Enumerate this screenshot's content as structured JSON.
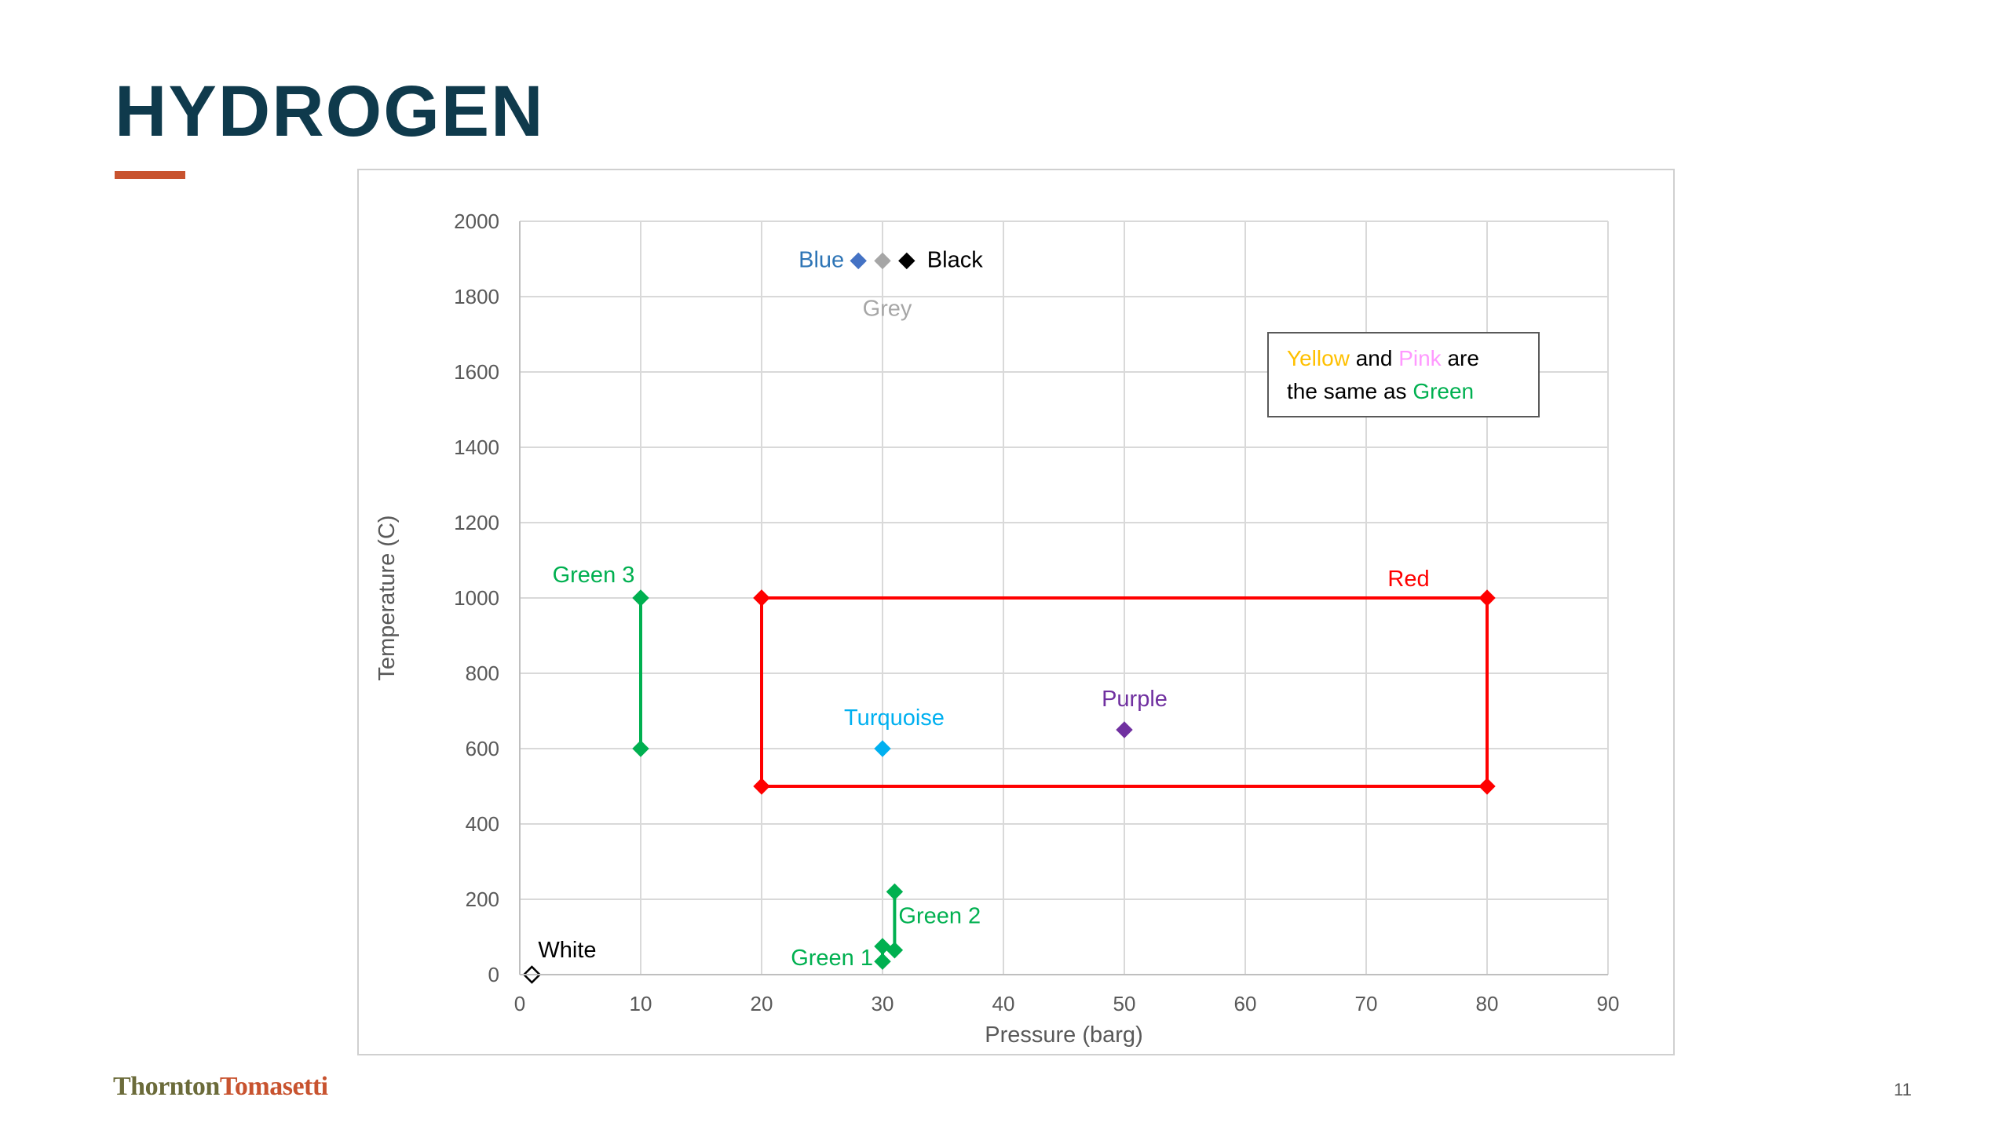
{
  "slide": {
    "title": "HYDROGEN",
    "page_number": "11",
    "logo": {
      "word1": "Thornton",
      "word2": "Tomasetti"
    },
    "accent_color": "#c8532f",
    "title_color": "#0f3a4c"
  },
  "chart_data": {
    "type": "scatter",
    "xlabel": "Pressure (barg)",
    "ylabel": "Temperature (C)",
    "xlim": [
      0,
      90
    ],
    "ylim": [
      0,
      2000
    ],
    "xticks": [
      0,
      10,
      20,
      30,
      40,
      50,
      60,
      70,
      80,
      90
    ],
    "yticks": [
      0,
      200,
      400,
      600,
      800,
      1000,
      1200,
      1400,
      1600,
      1800,
      2000
    ],
    "grid": true,
    "series": [
      {
        "name": "Blue",
        "color": "#4472c4",
        "points": [
          [
            28,
            1895
          ]
        ],
        "label": "Blue",
        "label_color": "#2e75b6"
      },
      {
        "name": "Grey",
        "color": "#a6a6a6",
        "points": [
          [
            30,
            1895
          ]
        ],
        "label": "Grey",
        "label_color": "#a6a6a6"
      },
      {
        "name": "Black",
        "color": "#000000",
        "points": [
          [
            32,
            1895
          ]
        ],
        "label": "Black",
        "label_color": "#000000"
      },
      {
        "name": "Green 3",
        "color": "#00b050",
        "points": [
          [
            10,
            1000
          ],
          [
            10,
            600
          ]
        ],
        "connected": true,
        "label": "Green 3",
        "label_color": "#00b050"
      },
      {
        "name": "Red",
        "color": "#ff0000",
        "points": [
          [
            20,
            1000
          ],
          [
            80,
            1000
          ],
          [
            80,
            500
          ],
          [
            20,
            500
          ],
          [
            20,
            1000
          ]
        ],
        "connected": true,
        "label": "Red",
        "label_color": "#ff0000"
      },
      {
        "name": "Turquoise",
        "color": "#00b0f0",
        "points": [
          [
            30,
            600
          ]
        ],
        "label": "Turquoise",
        "label_color": "#00b0f0"
      },
      {
        "name": "Purple",
        "color": "#7030a0",
        "points": [
          [
            50,
            650
          ]
        ],
        "label": "Purple",
        "label_color": "#7030a0"
      },
      {
        "name": "Green 2",
        "color": "#00b050",
        "points": [
          [
            31,
            220
          ],
          [
            31,
            65
          ]
        ],
        "connected": true,
        "label": "Green 2",
        "label_color": "#00b050"
      },
      {
        "name": "Green 1",
        "color": "#00b050",
        "points": [
          [
            30,
            75
          ],
          [
            30,
            35
          ]
        ],
        "connected": true,
        "label": "Green 1",
        "label_color": "#00b050"
      },
      {
        "name": "White",
        "color": "#ffffff",
        "points": [
          [
            1,
            0
          ]
        ],
        "outline": true,
        "label": "White",
        "label_color": "#000000"
      }
    ],
    "annotation": {
      "line1": [
        {
          "text": "Yellow",
          "color": "#ffc000"
        },
        {
          "text": " and ",
          "color": "#000000"
        },
        {
          "text": "Pink",
          "color": "#ff99ff"
        },
        {
          "text": " are",
          "color": "#000000"
        }
      ],
      "line2": [
        {
          "text": "the same as ",
          "color": "#000000"
        },
        {
          "text": "Green",
          "color": "#00b050"
        }
      ]
    }
  }
}
